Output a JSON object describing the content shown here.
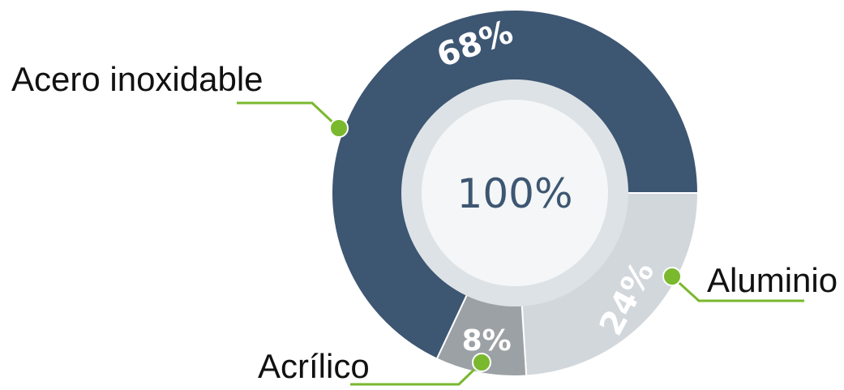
{
  "chart_data": {
    "type": "pie",
    "variant": "donut",
    "center_label": "100%",
    "slices": [
      {
        "category": "Acero inoxidable",
        "value": 68,
        "label": "68%",
        "color": "#3d5672"
      },
      {
        "category": "Aluminio",
        "value": 24,
        "label": "24%",
        "color": "#d2d7dc"
      },
      {
        "category": "Acrílico",
        "value": 8,
        "label": "8%",
        "color": "#9ca1a5"
      }
    ],
    "legend": "callouts",
    "accent_color": "#7ab82e",
    "inner_ring_color": "#dde2e6"
  }
}
